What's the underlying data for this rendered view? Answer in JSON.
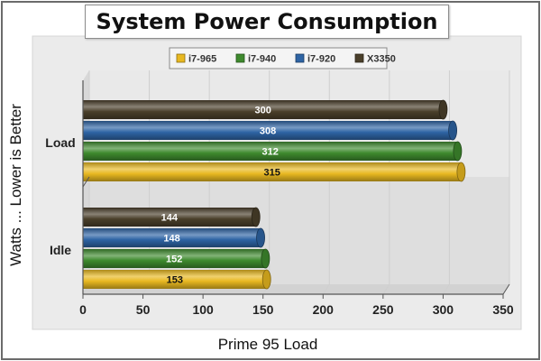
{
  "chart_data": {
    "type": "bar",
    "orientation": "horizontal",
    "title": "System Power Consumption",
    "xlabel": "Prime 95 Load",
    "ylabel": "Watts ... Lower is Better",
    "categories": [
      "Idle",
      "Load"
    ],
    "series": [
      {
        "name": "i7-965",
        "color": "#e8b820",
        "values": [
          153,
          315
        ]
      },
      {
        "name": "i7-940",
        "color": "#3e8a2e",
        "values": [
          152,
          312
        ]
      },
      {
        "name": "i7-920",
        "color": "#2e64a4",
        "values": [
          148,
          308
        ]
      },
      {
        "name": "X3350",
        "color": "#4a3f2a",
        "values": [
          144,
          300
        ]
      }
    ],
    "xlim": [
      0,
      350
    ],
    "xticks": [
      0,
      50,
      100,
      150,
      200,
      250,
      300,
      350
    ],
    "legend_position": "top-center",
    "grid": true
  }
}
